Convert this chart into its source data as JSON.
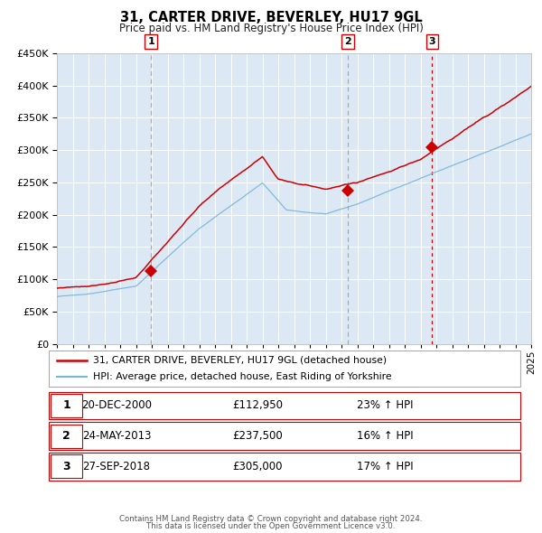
{
  "title": "31, CARTER DRIVE, BEVERLEY, HU17 9GL",
  "subtitle": "Price paid vs. HM Land Registry's House Price Index (HPI)",
  "background_color": "#dce9f5",
  "hpi_color": "#7ab4d8",
  "price_color": "#cc0000",
  "marker_color": "#cc0000",
  "vline1_color": "#aaaaaa",
  "vline2_color": "#aaaaaa",
  "vline3_color": "#cc0000",
  "sale1_year": 2000.97,
  "sale1_price": 112950,
  "sale2_year": 2013.4,
  "sale2_price": 237500,
  "sale3_year": 2018.74,
  "sale3_price": 305000,
  "xmin": 1995,
  "xmax": 2025,
  "ymin": 0,
  "ymax": 450000,
  "yticks": [
    0,
    50000,
    100000,
    150000,
    200000,
    250000,
    300000,
    350000,
    400000,
    450000
  ],
  "legend1_label": "31, CARTER DRIVE, BEVERLEY, HU17 9GL (detached house)",
  "legend2_label": "HPI: Average price, detached house, East Riding of Yorkshire",
  "table_rows": [
    [
      "1",
      "20-DEC-2000",
      "£112,950",
      "23% ↑ HPI"
    ],
    [
      "2",
      "24-MAY-2013",
      "£237,500",
      "16% ↑ HPI"
    ],
    [
      "3",
      "27-SEP-2018",
      "£305,000",
      "17% ↑ HPI"
    ]
  ],
  "footer1": "Contains HM Land Registry data © Crown copyright and database right 2024.",
  "footer2": "This data is licensed under the Open Government Licence v3.0."
}
